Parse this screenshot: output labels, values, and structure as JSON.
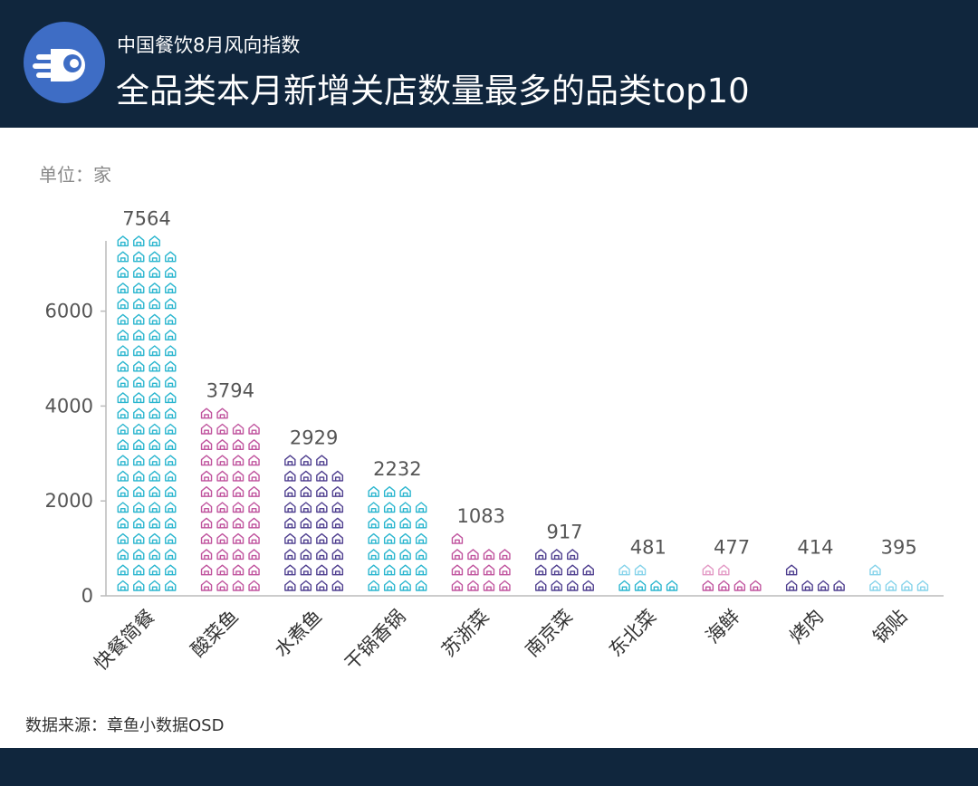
{
  "header": {
    "subtitle": "中国餐饮8月风向指数",
    "title": "全品类本月新增关店数量最多的品类top10"
  },
  "unit_label": "单位：家",
  "source_label": "数据来源：章鱼小数据OSD",
  "colors": {
    "header_bg": "#10263d",
    "logo_bg": "#3e6dc5",
    "cyan": "#2bb6cf",
    "pink": "#c0549e",
    "purple": "#4f3f8f",
    "light_pink": "#e39ac5",
    "light_cyan": "#86d3ea"
  },
  "chart_data": {
    "type": "bar",
    "style": "pictogram",
    "icon": "house-icon",
    "icon_unit": 333,
    "categories": [
      "快餐简餐",
      "酸菜鱼",
      "水煮鱼",
      "干锅香锅",
      "苏浙菜",
      "南京菜",
      "东北菜",
      "海鲜",
      "烤肉",
      "锅贴"
    ],
    "values": [
      7564,
      3794,
      2929,
      2232,
      1083,
      917,
      481,
      477,
      414,
      395
    ],
    "value_labels": [
      "7564",
      "3794",
      "2929",
      "2232",
      "1083",
      "917",
      "481",
      "477",
      "414",
      "395"
    ],
    "bar_colors": [
      "#2bb6cf",
      "#c0549e",
      "#4f3f8f",
      "#2bb6cf",
      "#c0549e",
      "#4f3f8f",
      "#2bb6cf",
      "#c0549e",
      "#4f3f8f",
      "#86d3ea"
    ],
    "top_colors": [
      "#2bb6cf",
      "#c0549e",
      "#4f3f8f",
      "#2bb6cf",
      "#c0549e",
      "#4f3f8f",
      "#86d3ea",
      "#e39ac5",
      "#4f3f8f",
      "#86d3ea"
    ],
    "yticks": [
      0,
      2000,
      4000,
      6000
    ],
    "ylim": [
      0,
      7564
    ],
    "xlabel": "",
    "ylabel": "",
    "grid": false
  }
}
